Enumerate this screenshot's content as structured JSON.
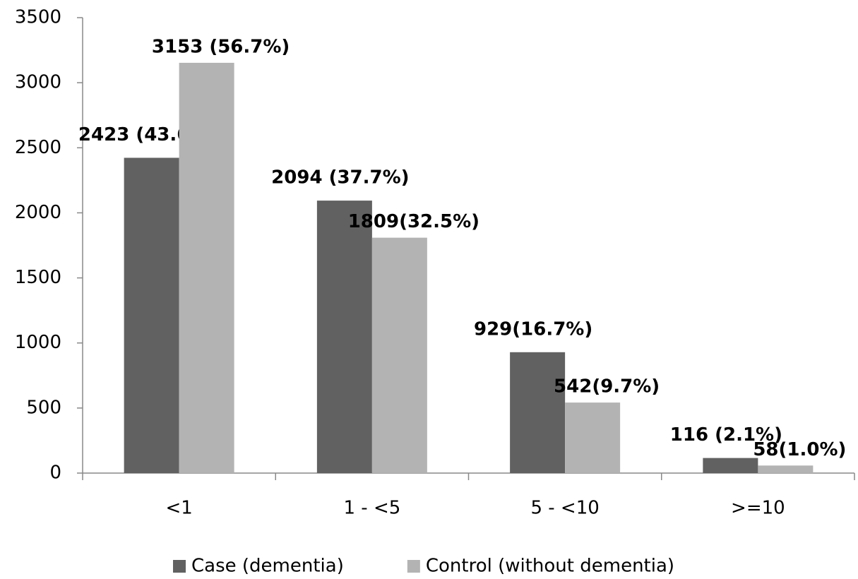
{
  "chart_data": {
    "type": "bar",
    "categories": [
      "<1",
      "1 - <5",
      "5 - <10",
      ">=10"
    ],
    "series": [
      {
        "name": "Case (dementia)",
        "color": "#616161",
        "values": [
          2423,
          2094,
          929,
          116
        ],
        "value_labels": [
          "2423 (43.6%)",
          "2094 (37.7%)",
          "929(16.7%)",
          "116 (2.1%)"
        ]
      },
      {
        "name": "Control (without dementia)",
        "color": "#b3b3b3",
        "values": [
          3153,
          1809,
          542,
          58
        ],
        "value_labels": [
          "3153 (56.7%)",
          "1809(32.5%)",
          "542(9.7%)",
          "58(1.0%)"
        ]
      }
    ],
    "ylim": [
      0,
      3500
    ],
    "yticks": [
      0,
      500,
      1000,
      1500,
      2000,
      2500,
      3000,
      3500
    ],
    "grid": false,
    "legend": "bottom"
  }
}
